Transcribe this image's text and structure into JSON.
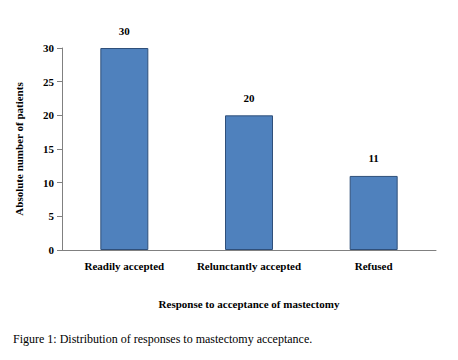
{
  "chart_data": {
    "type": "bar",
    "title": "Figure 1: Distribution of responses to mastectomy acceptance.",
    "x_label": "Response to acceptance of mastectomy",
    "y_label": "Absolute number of patients",
    "categories": [
      "Readily accepted",
      "Relunctantly accepted",
      "Refused"
    ],
    "values": [
      30,
      20,
      11
    ],
    "color": "#4f81bd",
    "ylim": [
      0,
      30
    ],
    "yticks": [
      0,
      5,
      10,
      15,
      20,
      25,
      30
    ],
    "grid": false,
    "data_labels": true
  }
}
